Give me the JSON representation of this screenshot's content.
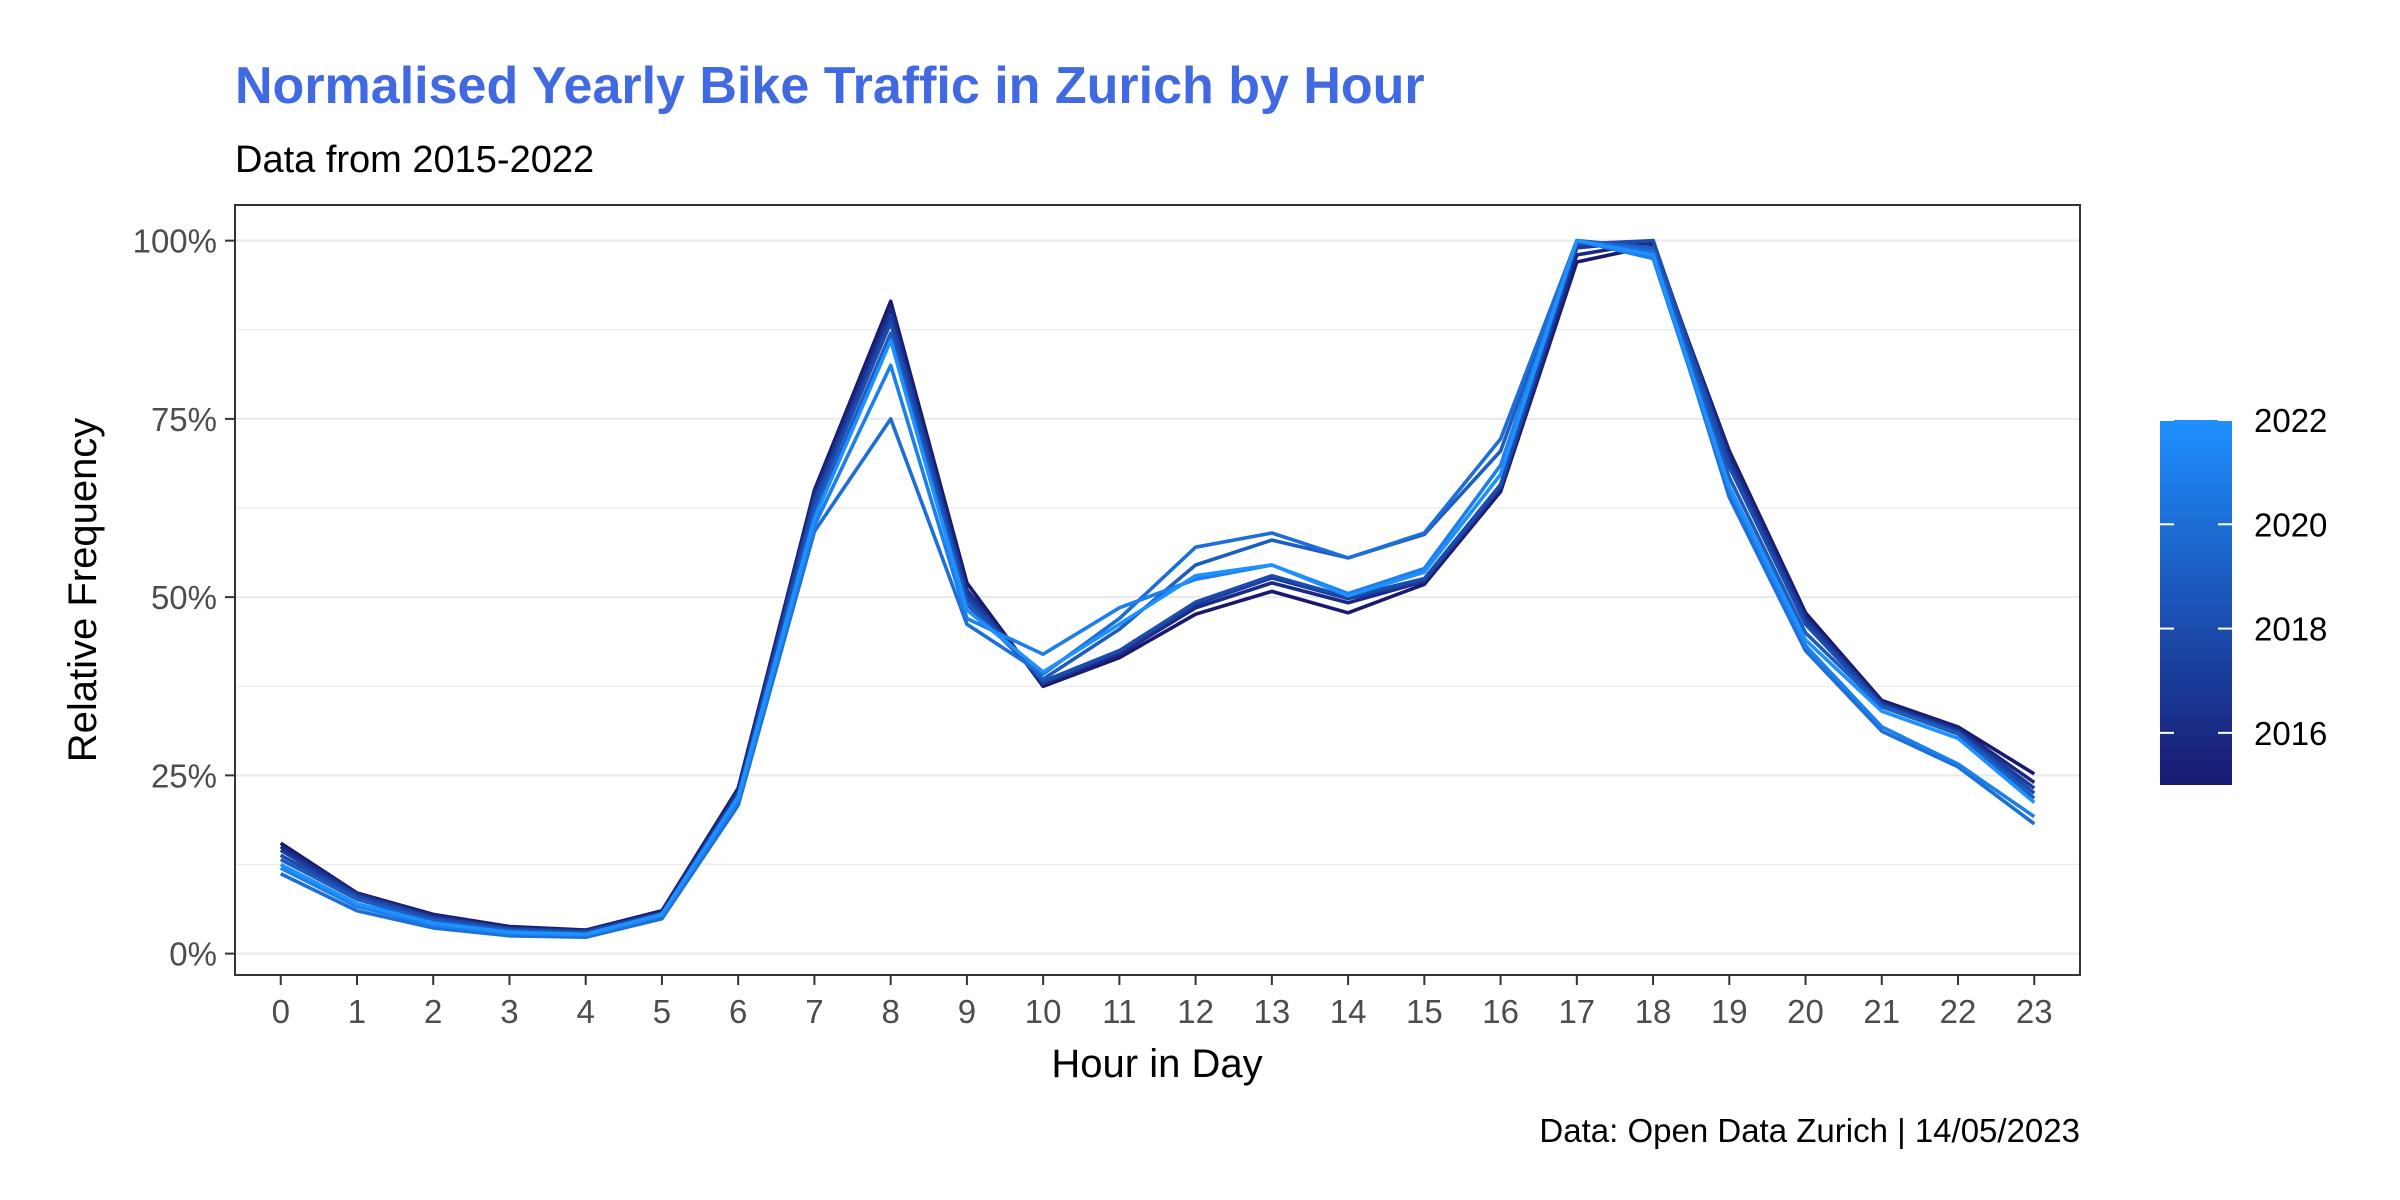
{
  "colors": {
    "title": "#4169E1",
    "low": "#191970",
    "high": "#1E90FF",
    "grid": "#ebebeb",
    "panel_border": "#333333"
  },
  "chart_data": {
    "type": "line",
    "title": "Normalised Yearly Bike Traffic in Zurich by Hour",
    "subtitle": "Data from 2015-2022",
    "xlabel": "Hour in Day",
    "ylabel": "Relative Frequency",
    "caption": "Data: Open Data Zurich | 14/05/2023",
    "x": [
      0,
      1,
      2,
      3,
      4,
      5,
      6,
      7,
      8,
      9,
      10,
      11,
      12,
      13,
      14,
      15,
      16,
      17,
      18,
      19,
      20,
      21,
      22,
      23
    ],
    "ylim": [
      0,
      1
    ],
    "y_ticks": [
      0,
      0.25,
      0.5,
      0.75,
      1.0
    ],
    "y_tick_labels": [
      "0%",
      "25%",
      "50%",
      "75%",
      "100%"
    ],
    "grid": true,
    "legend": {
      "position": "right",
      "type": "colorbar",
      "range": [
        2015,
        2022
      ],
      "ticks": [
        2016,
        2018,
        2020,
        2022
      ]
    },
    "series": [
      {
        "year": 2015,
        "values": [
          0.155,
          0.085,
          0.055,
          0.038,
          0.033,
          0.06,
          0.232,
          0.65,
          0.915,
          0.52,
          0.375,
          0.415,
          0.476,
          0.508,
          0.478,
          0.518,
          0.648,
          0.97,
          0.993,
          0.705,
          0.478,
          0.355,
          0.318,
          0.252
        ]
      },
      {
        "year": 2016,
        "values": [
          0.15,
          0.084,
          0.053,
          0.036,
          0.032,
          0.058,
          0.228,
          0.645,
          0.905,
          0.51,
          0.378,
          0.42,
          0.485,
          0.52,
          0.492,
          0.522,
          0.652,
          0.98,
          0.998,
          0.698,
          0.472,
          0.352,
          0.315,
          0.24
        ]
      },
      {
        "year": 2017,
        "values": [
          0.145,
          0.082,
          0.051,
          0.035,
          0.031,
          0.057,
          0.226,
          0.638,
          0.895,
          0.505,
          0.38,
          0.423,
          0.49,
          0.527,
          0.498,
          0.523,
          0.655,
          0.99,
          1.0,
          0.69,
          0.468,
          0.35,
          0.312,
          0.232
        ]
      },
      {
        "year": 2018,
        "values": [
          0.138,
          0.08,
          0.049,
          0.034,
          0.03,
          0.056,
          0.222,
          0.632,
          0.885,
          0.498,
          0.382,
          0.425,
          0.493,
          0.53,
          0.5,
          0.526,
          0.658,
          0.995,
          1.0,
          0.683,
          0.462,
          0.348,
          0.31,
          0.225
        ]
      },
      {
        "year": 2019,
        "values": [
          0.132,
          0.076,
          0.046,
          0.032,
          0.028,
          0.054,
          0.218,
          0.62,
          0.87,
          0.49,
          0.385,
          0.455,
          0.545,
          0.58,
          0.555,
          0.588,
          0.705,
          1.0,
          0.99,
          0.668,
          0.45,
          0.346,
          0.308,
          0.218
        ]
      },
      {
        "year": 2020,
        "values": [
          0.112,
          0.06,
          0.036,
          0.025,
          0.023,
          0.049,
          0.208,
          0.592,
          0.75,
          0.462,
          0.392,
          0.47,
          0.57,
          0.59,
          0.555,
          0.59,
          0.722,
          1.0,
          0.985,
          0.64,
          0.425,
          0.312,
          0.262,
          0.182
        ]
      },
      {
        "year": 2021,
        "values": [
          0.12,
          0.066,
          0.04,
          0.028,
          0.026,
          0.053,
          0.215,
          0.6,
          0.825,
          0.47,
          0.42,
          0.485,
          0.525,
          0.545,
          0.505,
          0.54,
          0.685,
          1.0,
          0.975,
          0.65,
          0.432,
          0.318,
          0.266,
          0.192
        ]
      },
      {
        "year": 2022,
        "values": [
          0.125,
          0.07,
          0.043,
          0.03,
          0.027,
          0.055,
          0.22,
          0.61,
          0.86,
          0.482,
          0.395,
          0.462,
          0.53,
          0.545,
          0.502,
          0.535,
          0.672,
          1.0,
          0.98,
          0.655,
          0.44,
          0.34,
          0.302,
          0.212
        ]
      }
    ]
  }
}
